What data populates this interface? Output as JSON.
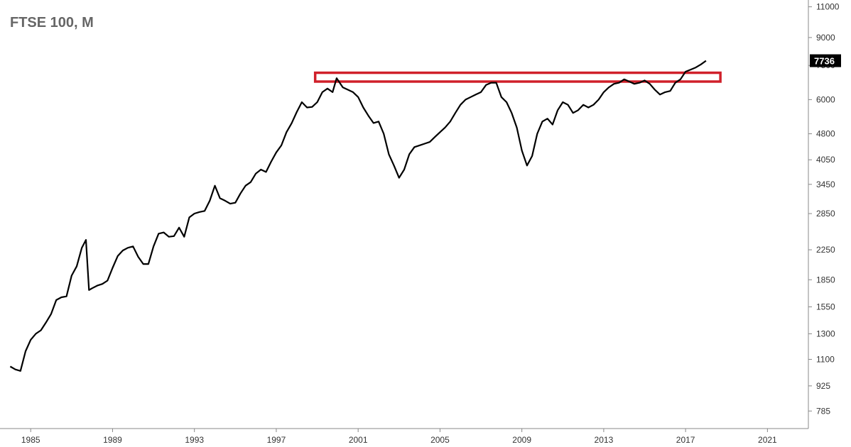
{
  "chart_data": {
    "type": "line",
    "title": "FTSE 100, M",
    "xlabel": "",
    "ylabel": "",
    "y_scale": "log",
    "x_range": [
      1983.5,
      2023.0
    ],
    "y_range": [
      700,
      11500
    ],
    "x_tick_labels": [
      "1985",
      "1989",
      "1993",
      "1997",
      "2001",
      "2005",
      "2009",
      "2013",
      "2017",
      "2021"
    ],
    "y_tick_labels": [
      "11000",
      "9000",
      "7736",
      "7500",
      "6000",
      "4800",
      "4050",
      "3450",
      "2850",
      "2250",
      "1850",
      "1550",
      "1300",
      "1100",
      "925",
      "785"
    ],
    "last_value_label": "7736",
    "last_value": 7736,
    "line_color": "#000000",
    "annotation": {
      "type": "rectangle",
      "color": "#d0202a",
      "x_range": [
        1998.9,
        2018.7
      ],
      "y_range": [
        6750,
        7150
      ]
    },
    "series": [
      {
        "x": [
          1984.0,
          1984.25,
          1984.5,
          1984.75,
          1985.0,
          1985.25,
          1985.5,
          1985.75,
          1986.0,
          1986.25,
          1986.5,
          1986.75,
          1987.0,
          1987.25,
          1987.5,
          1987.7,
          1987.85,
          1988.0,
          1988.25,
          1988.5,
          1988.75,
          1989.0,
          1989.25,
          1989.5,
          1989.75,
          1990.0,
          1990.25,
          1990.5,
          1990.75,
          1991.0,
          1991.25,
          1991.5,
          1991.75,
          1992.0,
          1992.25,
          1992.5,
          1992.75,
          1993.0,
          1993.25,
          1993.5,
          1993.75,
          1994.0,
          1994.25,
          1994.5,
          1994.75,
          1995.0,
          1995.25,
          1995.5,
          1995.75,
          1996.0,
          1996.25,
          1996.5,
          1996.75,
          1997.0,
          1997.25,
          1997.5,
          1997.75,
          1998.0,
          1998.25,
          1998.5,
          1998.75,
          1999.0,
          1999.25,
          1999.5,
          1999.75,
          1999.95,
          2000.25,
          2000.5,
          2000.75,
          2001.0,
          2001.25,
          2001.5,
          2001.75,
          2002.0,
          2002.25,
          2002.5,
          2002.75,
          2003.0,
          2003.25,
          2003.5,
          2003.75,
          2004.0,
          2004.25,
          2004.5,
          2004.75,
          2005.0,
          2005.25,
          2005.5,
          2005.75,
          2006.0,
          2006.25,
          2006.5,
          2006.75,
          2007.0,
          2007.25,
          2007.5,
          2007.75,
          2008.0,
          2008.25,
          2008.5,
          2008.75,
          2009.0,
          2009.25,
          2009.5,
          2009.75,
          2010.0,
          2010.25,
          2010.5,
          2010.75,
          2011.0,
          2011.25,
          2011.5,
          2011.75,
          2012.0,
          2012.25,
          2012.5,
          2012.75,
          2013.0,
          2013.25,
          2013.5,
          2013.75,
          2014.0,
          2014.25,
          2014.5,
          2014.75,
          2015.0,
          2015.25,
          2015.5,
          2015.75,
          2016.0,
          2016.25,
          2016.5,
          2016.75,
          2017.0,
          2017.25,
          2017.5,
          2017.75,
          2018.0
        ],
        "y": [
          1050,
          1030,
          1020,
          1160,
          1250,
          1300,
          1330,
          1400,
          1480,
          1620,
          1650,
          1660,
          1900,
          2020,
          2280,
          2400,
          1730,
          1750,
          1780,
          1800,
          1840,
          2000,
          2160,
          2240,
          2280,
          2300,
          2150,
          2050,
          2050,
          2300,
          2500,
          2520,
          2450,
          2460,
          2600,
          2450,
          2780,
          2850,
          2880,
          2900,
          3100,
          3420,
          3150,
          3100,
          3040,
          3060,
          3250,
          3420,
          3500,
          3700,
          3800,
          3740,
          4000,
          4250,
          4450,
          4850,
          5140,
          5530,
          5900,
          5700,
          5720,
          5900,
          6300,
          6450,
          6300,
          6900,
          6500,
          6400,
          6300,
          6100,
          5700,
          5400,
          5150,
          5200,
          4800,
          4200,
          3900,
          3600,
          3800,
          4200,
          4400,
          4450,
          4500,
          4550,
          4700,
          4850,
          5000,
          5200,
          5500,
          5800,
          6000,
          6100,
          6200,
          6300,
          6600,
          6700,
          6700,
          6100,
          5900,
          5500,
          5000,
          4300,
          3900,
          4150,
          4800,
          5200,
          5300,
          5100,
          5600,
          5900,
          5800,
          5500,
          5600,
          5800,
          5700,
          5800,
          6000,
          6300,
          6500,
          6650,
          6700,
          6850,
          6750,
          6650,
          6700,
          6800,
          6650,
          6400,
          6200,
          6300,
          6350,
          6700,
          6850,
          7200,
          7300,
          7400,
          7550,
          7736
        ]
      }
    ]
  }
}
